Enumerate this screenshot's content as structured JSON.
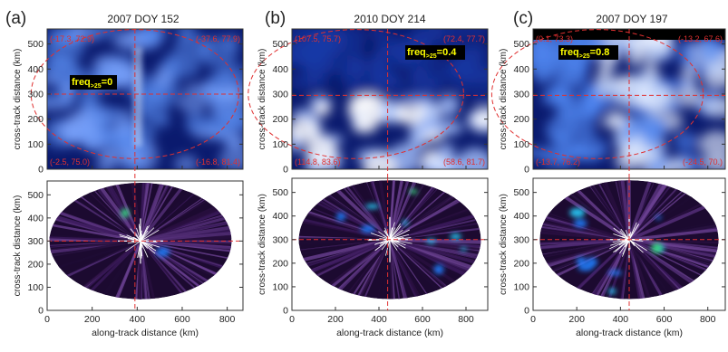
{
  "figure": {
    "xlabel": "along-track distance (km)",
    "ylabel": "cross-track distance (km)",
    "x_ticks": [
      "0",
      "200",
      "400",
      "600",
      "800"
    ],
    "y_ticks": [
      "0",
      "100",
      "200",
      "300",
      "400",
      "500"
    ],
    "ellipse_color": "#e03030",
    "cloud_color": "#3a6fe0",
    "image_bg_color": "#0a1a6e",
    "lower_bg_color": "#1c0a30",
    "freq_label_bg": "#000000",
    "freq_label_color": "#ffff00"
  },
  "panels": [
    {
      "letter": "(a)",
      "title": "2007 DOY 152",
      "freq_prefix": "freq",
      "freq_sub": ">25",
      "freq_value": "=0",
      "corners": {
        "tl": "(-17.3, 72.9)",
        "tr": "(-37.6, 77.9)",
        "bl": "(-2.5, 75.0)",
        "br": "(-16.8, 81.4)"
      },
      "crosshair_x": 390,
      "crosshair_y": 300
    },
    {
      "letter": "(b)",
      "title": "2010 DOY 214",
      "freq_prefix": "freq",
      "freq_sub": ">25",
      "freq_value": "=0.4",
      "corners": {
        "tl": "(107.5, 75.7)",
        "tr": "(72.4, 77.7)",
        "bl": "(114.8, 83.6)",
        "br": "(58.6, 81.7)"
      },
      "crosshair_x": 440,
      "crosshair_y": 295
    },
    {
      "letter": "(c)",
      "title": "2007 DOY 197",
      "freq_prefix": "freq",
      "freq_sub": ">25",
      "freq_value": "=0.8",
      "corners": {
        "tl": "(0.1, 73.3)",
        "tr": "(-13.2, 67.6)",
        "bl": "(-13.7, 76.2)",
        "br": "(-24.5, 70.)"
      },
      "crosshair_x": 440,
      "crosshair_y": 295
    }
  ],
  "chart_data": [
    {
      "type": "heatmap",
      "title": "2007 DOY 152",
      "xlabel": "along-track distance (km)",
      "ylabel": "cross-track distance (km)",
      "xlim": [
        0,
        870
      ],
      "ylim": [
        0,
        560
      ],
      "annotation": "freq>25=0"
    },
    {
      "type": "heatmap",
      "title": "2010 DOY 214",
      "xlabel": "along-track distance (km)",
      "ylabel": "cross-track distance (km)",
      "xlim": [
        0,
        900
      ],
      "ylim": [
        0,
        560
      ],
      "annotation": "freq>25=0.4"
    },
    {
      "type": "heatmap",
      "title": "2007 DOY 197",
      "xlabel": "along-track distance (km)",
      "ylabel": "cross-track distance (km)",
      "xlim": [
        0,
        880
      ],
      "ylim": [
        0,
        560
      ],
      "annotation": "freq>25=0.8"
    }
  ]
}
